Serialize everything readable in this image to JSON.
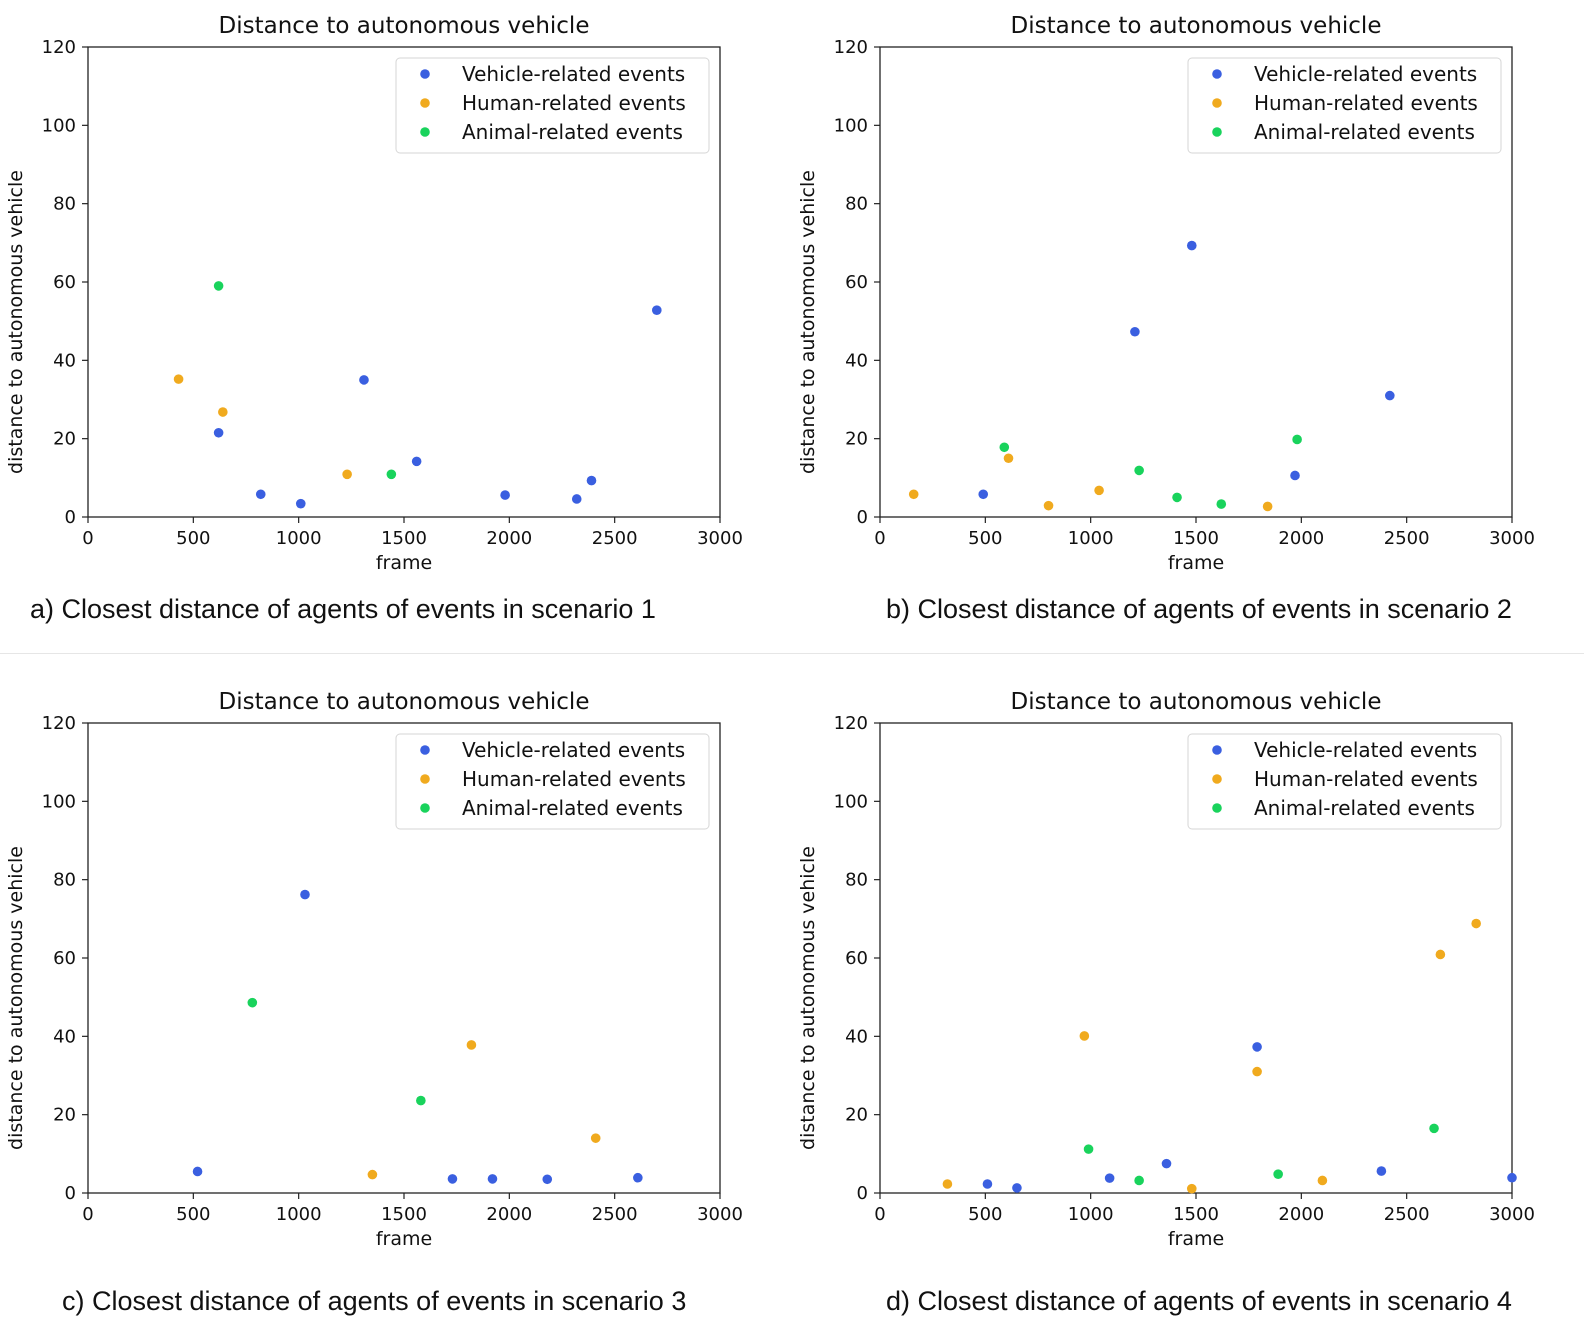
{
  "chart_data": [
    {
      "type": "scatter",
      "title": "Distance to autonomous vehicle",
      "xlabel": "frame",
      "ylabel": "distance to autonomous vehicle",
      "xlim": [
        0,
        3000
      ],
      "ylim": [
        0,
        120
      ],
      "xticks": [
        "0",
        "500",
        "1000",
        "1500",
        "2000",
        "2500",
        "3000"
      ],
      "yticks": [
        "0",
        "20",
        "40",
        "60",
        "80",
        "100",
        "120"
      ],
      "legend_position": "top-right",
      "caption": "a) Closest distance of agents of events in scenario 1",
      "series": [
        {
          "name": "Vehicle-related events",
          "color": "#3a5fe0",
          "x": [
            620,
            820,
            1010,
            1310,
            1560,
            1980,
            2320,
            2390,
            2700
          ],
          "y": [
            21.5,
            5.8,
            3.4,
            35,
            14.2,
            5.6,
            4.6,
            9.3,
            52.8
          ]
        },
        {
          "name": "Human-related events",
          "color": "#f0aa1e",
          "x": [
            430,
            640,
            1230
          ],
          "y": [
            35.2,
            26.8,
            10.9
          ]
        },
        {
          "name": "Animal-related events",
          "color": "#19d35c",
          "x": [
            620,
            1440
          ],
          "y": [
            59,
            10.9
          ]
        }
      ]
    },
    {
      "type": "scatter",
      "title": "Distance to autonomous vehicle",
      "xlabel": "frame",
      "ylabel": "distance to autonomous vehicle",
      "xlim": [
        0,
        3000
      ],
      "ylim": [
        0,
        120
      ],
      "xticks": [
        "0",
        "500",
        "1000",
        "1500",
        "2000",
        "2500",
        "3000"
      ],
      "yticks": [
        "0",
        "20",
        "40",
        "60",
        "80",
        "100",
        "120"
      ],
      "legend_position": "top-right",
      "caption": "b) Closest distance of agents of events in scenario 2",
      "series": [
        {
          "name": "Vehicle-related events",
          "color": "#3a5fe0",
          "x": [
            490,
            1210,
            1480,
            1970,
            2420
          ],
          "y": [
            5.8,
            47.3,
            69.3,
            10.6,
            31
          ]
        },
        {
          "name": "Human-related events",
          "color": "#f0aa1e",
          "x": [
            160,
            610,
            800,
            1040,
            1840
          ],
          "y": [
            5.8,
            15,
            2.9,
            6.8,
            2.7
          ]
        },
        {
          "name": "Animal-related events",
          "color": "#19d35c",
          "x": [
            590,
            1230,
            1410,
            1620,
            1980
          ],
          "y": [
            17.8,
            11.9,
            5,
            3.3,
            19.8
          ]
        }
      ]
    },
    {
      "type": "scatter",
      "title": "Distance to autonomous vehicle",
      "xlabel": "frame",
      "ylabel": "distance to autonomous vehicle",
      "xlim": [
        0,
        3000
      ],
      "ylim": [
        0,
        120
      ],
      "xticks": [
        "0",
        "500",
        "1000",
        "1500",
        "2000",
        "2500",
        "3000"
      ],
      "yticks": [
        "0",
        "20",
        "40",
        "60",
        "80",
        "100",
        "120"
      ],
      "legend_position": "top-right",
      "caption": "c) Closest distance of agents of events in scenario 3",
      "series": [
        {
          "name": "Vehicle-related events",
          "color": "#3a5fe0",
          "x": [
            520,
            1030,
            1730,
            1920,
            2180,
            2610
          ],
          "y": [
            5.5,
            76.2,
            3.6,
            3.6,
            3.5,
            3.9
          ]
        },
        {
          "name": "Human-related events",
          "color": "#f0aa1e",
          "x": [
            1350,
            1820,
            2410
          ],
          "y": [
            4.7,
            37.8,
            14
          ]
        },
        {
          "name": "Animal-related events",
          "color": "#19d35c",
          "x": [
            780,
            1580
          ],
          "y": [
            48.6,
            23.6
          ]
        }
      ]
    },
    {
      "type": "scatter",
      "title": "Distance to autonomous vehicle",
      "xlabel": "frame",
      "ylabel": "distance to autonomous vehicle",
      "xlim": [
        0,
        3000
      ],
      "ylim": [
        0,
        120
      ],
      "xticks": [
        "0",
        "500",
        "1000",
        "1500",
        "2000",
        "2500",
        "3000"
      ],
      "yticks": [
        "0",
        "20",
        "40",
        "60",
        "80",
        "100",
        "120"
      ],
      "legend_position": "top-right",
      "caption": "d) Closest distance of agents of events in scenario 4",
      "series": [
        {
          "name": "Vehicle-related events",
          "color": "#3a5fe0",
          "x": [
            510,
            650,
            1090,
            1360,
            1790,
            2380,
            3000
          ],
          "y": [
            2.3,
            1.3,
            3.8,
            7.5,
            37.3,
            5.6,
            3.9
          ]
        },
        {
          "name": "Human-related events",
          "color": "#f0aa1e",
          "x": [
            320,
            970,
            1480,
            1790,
            2100,
            2660,
            2830
          ],
          "y": [
            2.3,
            40.1,
            1.1,
            31,
            3.2,
            60.9,
            68.8
          ]
        },
        {
          "name": "Animal-related events",
          "color": "#19d35c",
          "x": [
            990,
            1230,
            1890,
            2630
          ],
          "y": [
            11.2,
            3.2,
            4.8,
            16.5
          ]
        }
      ]
    }
  ]
}
